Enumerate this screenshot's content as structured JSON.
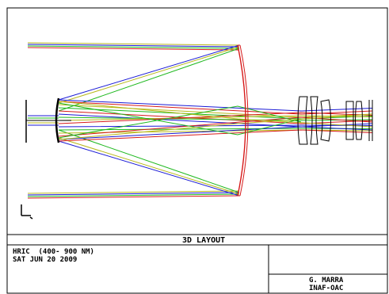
{
  "plot": {
    "title": "3D LAYOUT",
    "system_name": "HRIC  (400- 900 NM)",
    "date": "SAT JUN 20 2009",
    "author": "G. MARRA",
    "organization": "INAF-OAC",
    "colors": {
      "ray_field_1": "#1a1ad6",
      "ray_field_2": "#1eb81e",
      "ray_field_3": "#d61a1a",
      "ray_field_4": "#b8b81a",
      "optics": "#000000",
      "mirror": "#d61a1a",
      "frame": "#000000"
    },
    "icons": {
      "axis_glyph": "coordinate-axes-icon"
    }
  }
}
